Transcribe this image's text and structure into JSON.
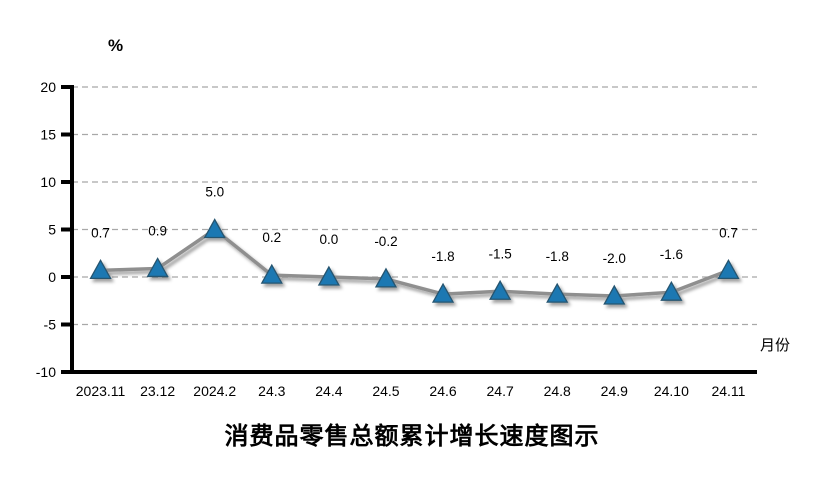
{
  "chart_data": {
    "type": "line",
    "title": "消费品零售总额累计增长速度图示",
    "unit_label": "%",
    "xlabel": "月份",
    "categories": [
      "2023.11",
      "23.12",
      "2024.2",
      "24.3",
      "24.4",
      "24.5",
      "24.6",
      "24.7",
      "24.8",
      "24.9",
      "24.10",
      "24.11"
    ],
    "values": [
      0.7,
      0.9,
      5.0,
      0.2,
      0.0,
      -0.2,
      -1.8,
      -1.5,
      -1.8,
      -2.0,
      -1.6,
      0.7
    ],
    "labels": [
      "0.7",
      "0.9",
      "5.0",
      "0.2",
      "0.0",
      "-0.2",
      "-1.8",
      "-1.5",
      "-1.8",
      "-2.0",
      "-1.6",
      "0.7"
    ],
    "y_ticks": [
      20,
      15,
      10,
      5,
      0,
      -5,
      -10
    ],
    "ylim": [
      -10,
      20
    ],
    "grid": "horizontal-dashed",
    "legend": "none",
    "marker": "triangle-up",
    "line_color": "#8f8f8f",
    "marker_color": "#1b78b2",
    "marker_edge_color": "#27546f",
    "grid_color": "#a8a8a8",
    "axis_color": "#000000"
  }
}
